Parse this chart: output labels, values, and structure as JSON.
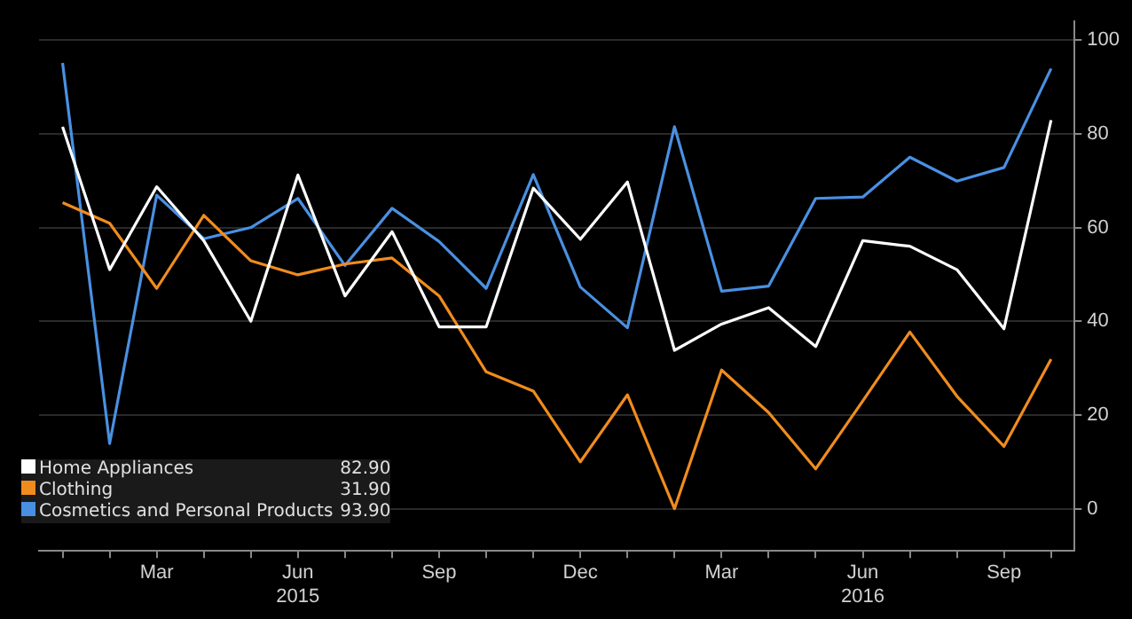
{
  "chart_data": {
    "type": "line",
    "categories": [
      null,
      null,
      "Mar",
      null,
      null,
      "Jun\n2015",
      null,
      null,
      "Sep",
      null,
      null,
      "Dec",
      null,
      null,
      "Mar",
      null,
      null,
      "Jun\n2016",
      null,
      null,
      "Sep",
      null
    ],
    "series": [
      {
        "name": "Home Appliances",
        "color": "#ffffff",
        "values": [
          81.5,
          51.0,
          68.7,
          57.2,
          40.0,
          71.2,
          45.4,
          59.1,
          38.8,
          38.8,
          68.4,
          57.5,
          69.7,
          33.8,
          39.4,
          42.9,
          34.6,
          57.2,
          56.0,
          51.0,
          38.4,
          82.9
        ]
      },
      {
        "name": "Clothing",
        "color": "#f08c1e",
        "values": [
          65.3,
          60.9,
          47.0,
          62.6,
          52.9,
          49.9,
          52.2,
          53.5,
          45.4,
          29.2,
          25.1,
          10.0,
          24.3,
          0.0,
          29.6,
          20.5,
          8.5,
          23.0,
          37.7,
          24.0,
          13.3,
          31.9
        ]
      },
      {
        "name": "Cosmetics and Personal Products",
        "color": "#4a90e2",
        "values": [
          95.1,
          13.9,
          66.9,
          57.6,
          60.0,
          66.2,
          51.9,
          64.1,
          57.0,
          47.0,
          71.3,
          47.3,
          38.6,
          81.5,
          46.4,
          47.5,
          66.2,
          66.5,
          75.0,
          69.9,
          72.8,
          93.9
        ]
      }
    ],
    "ylim": [
      -9,
      104
    ],
    "yticks": [
      0,
      20,
      40,
      60,
      80,
      100
    ],
    "grid": "y",
    "legend": "bottom left",
    "marker": "none",
    "line_style": "solid",
    "annotations": [
      "82.90",
      "31.90",
      "93.90"
    ]
  }
}
